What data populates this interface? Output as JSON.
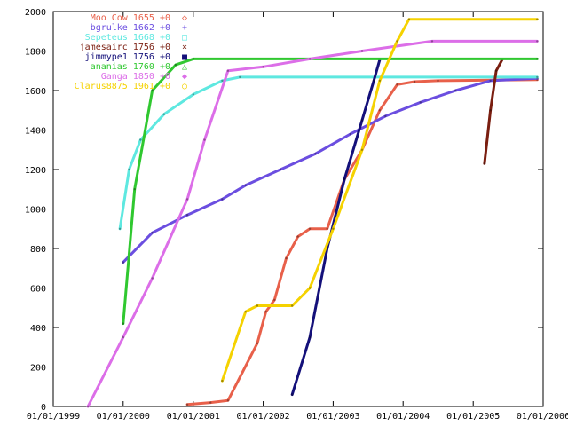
{
  "chart_data": {
    "type": "line",
    "title": "",
    "xlabel": "",
    "ylabel": "",
    "x_type": "date",
    "xlim": [
      "1999-01-01",
      "2006-01-01"
    ],
    "ylim": [
      0,
      2000
    ],
    "x_tick_labels": [
      "01/01/1999",
      "01/01/2000",
      "01/01/2001",
      "01/01/2002",
      "01/01/2003",
      "01/01/2004",
      "01/01/2005",
      "01/01/2006"
    ],
    "y_ticks": [
      0,
      200,
      400,
      600,
      800,
      1000,
      1200,
      1400,
      1600,
      1800,
      2000
    ],
    "grid": false,
    "legend_position": "top-left",
    "series": [
      {
        "name": "Moo Cow",
        "value": "1655",
        "delta": "+0",
        "marker": "◇",
        "color": "#e8604a",
        "points": [
          [
            "2000-12-01",
            10
          ],
          [
            "2001-04-01",
            20
          ],
          [
            "2001-07-01",
            30
          ],
          [
            "2001-12-01",
            320
          ],
          [
            "2002-01-15",
            480
          ],
          [
            "2002-03-01",
            540
          ],
          [
            "2002-05-01",
            750
          ],
          [
            "2002-07-01",
            860
          ],
          [
            "2002-09-01",
            900
          ],
          [
            "2002-12-01",
            900
          ],
          [
            "2003-03-01",
            1150
          ],
          [
            "2003-06-01",
            1300
          ],
          [
            "2003-09-01",
            1500
          ],
          [
            "2003-12-01",
            1630
          ],
          [
            "2004-03-01",
            1645
          ],
          [
            "2004-07-01",
            1650
          ],
          [
            "2005-12-01",
            1655
          ]
        ]
      },
      {
        "name": "bgrulke",
        "value": "1662",
        "delta": "+0",
        "marker": "+",
        "color": "#6b4ee0",
        "points": [
          [
            "2000-01-01",
            730
          ],
          [
            "2000-06-01",
            880
          ],
          [
            "2000-12-01",
            970
          ],
          [
            "2001-06-01",
            1050
          ],
          [
            "2001-10-01",
            1120
          ],
          [
            "2002-04-01",
            1200
          ],
          [
            "2002-10-01",
            1280
          ],
          [
            "2003-04-01",
            1380
          ],
          [
            "2003-10-01",
            1470
          ],
          [
            "2004-04-01",
            1540
          ],
          [
            "2004-10-01",
            1600
          ],
          [
            "2005-04-01",
            1650
          ],
          [
            "2005-12-01",
            1662
          ]
        ]
      },
      {
        "name": "Sepeteus",
        "value": "1668",
        "delta": "+0",
        "marker": "□",
        "color": "#5ee8e0",
        "points": [
          [
            "1999-12-15",
            900
          ],
          [
            "2000-02-01",
            1200
          ],
          [
            "2000-04-01",
            1350
          ],
          [
            "2000-08-01",
            1480
          ],
          [
            "2001-01-01",
            1580
          ],
          [
            "2001-06-01",
            1650
          ],
          [
            "2001-09-01",
            1668
          ],
          [
            "2005-12-01",
            1668
          ]
        ]
      },
      {
        "name": "jamesairc",
        "value": "1756",
        "delta": "+0",
        "marker": "×",
        "color": "#7a1e10",
        "points": [
          [
            "2005-03-01",
            1230
          ],
          [
            "2005-04-01",
            1500
          ],
          [
            "2005-05-01",
            1700
          ],
          [
            "2005-06-01",
            1756
          ]
        ]
      },
      {
        "name": "jimmype1",
        "value": "1756",
        "delta": "+0",
        "marker": "■",
        "color": "#14107a",
        "points": [
          [
            "2002-06-01",
            60
          ],
          [
            "2002-09-01",
            350
          ],
          [
            "2002-12-01",
            800
          ],
          [
            "2003-03-01",
            1150
          ],
          [
            "2003-06-01",
            1450
          ],
          [
            "2003-08-01",
            1650
          ],
          [
            "2003-09-01",
            1756
          ]
        ]
      },
      {
        "name": "ananias",
        "value": "1760",
        "delta": "+0",
        "marker": "△",
        "color": "#30c830",
        "points": [
          [
            "2000-01-01",
            420
          ],
          [
            "2000-03-01",
            1100
          ],
          [
            "2000-06-01",
            1600
          ],
          [
            "2000-10-01",
            1730
          ],
          [
            "2001-01-01",
            1760
          ],
          [
            "2005-12-01",
            1760
          ]
        ]
      },
      {
        "name": "Ganga",
        "value": "1850",
        "delta": "+0",
        "marker": "◆",
        "color": "#dc6ee8",
        "points": [
          [
            "1999-07-01",
            0
          ],
          [
            "2000-01-01",
            350
          ],
          [
            "2000-06-01",
            650
          ],
          [
            "2000-12-01",
            1050
          ],
          [
            "2001-03-01",
            1350
          ],
          [
            "2001-07-01",
            1700
          ],
          [
            "2002-01-01",
            1720
          ],
          [
            "2002-09-01",
            1760
          ],
          [
            "2003-06-01",
            1800
          ],
          [
            "2004-06-01",
            1850
          ],
          [
            "2005-12-01",
            1850
          ]
        ]
      },
      {
        "name": "Clarus8875",
        "value": "1961",
        "delta": "+0",
        "marker": "○",
        "color": "#f5d200",
        "points": [
          [
            "2001-06-01",
            130
          ],
          [
            "2001-10-01",
            480
          ],
          [
            "2001-12-01",
            510
          ],
          [
            "2002-06-01",
            510
          ],
          [
            "2002-09-01",
            600
          ],
          [
            "2003-01-01",
            900
          ],
          [
            "2003-06-01",
            1300
          ],
          [
            "2003-09-01",
            1650
          ],
          [
            "2003-12-01",
            1850
          ],
          [
            "2004-02-01",
            1961
          ],
          [
            "2005-12-01",
            1961
          ]
        ]
      }
    ]
  }
}
